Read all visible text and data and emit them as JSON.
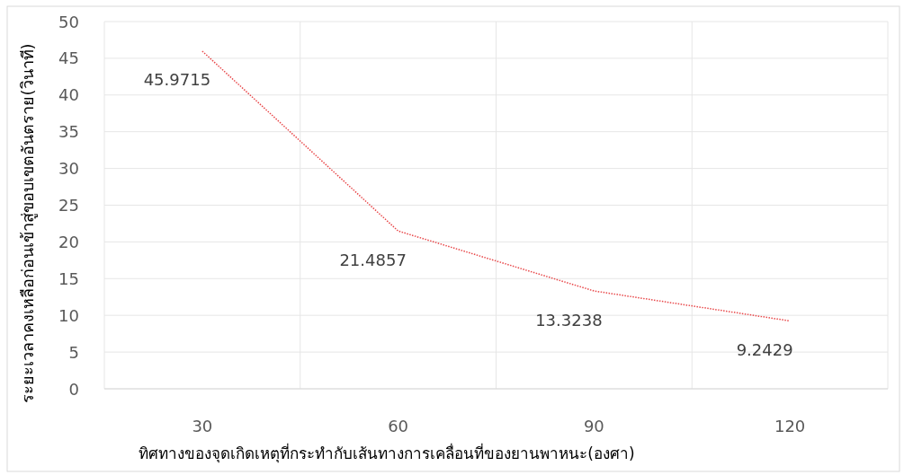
{
  "chart_data": {
    "type": "line",
    "categories": [
      "30",
      "60",
      "90",
      "120"
    ],
    "series": [
      {
        "color": "#e8484a",
        "values": [
          45.9715,
          21.4857,
          13.3238,
          9.2429
        ]
      }
    ],
    "xlabel": "ทิศทางของจุดเกิดเหตุที่กระทำกับเส้นทางการเคลื่อนที่ของยานพาหนะ(องศา)",
    "ylabel": "ระยะเวลาคงเหลือก่อนเข้าสู่ขอบเขตอันตราย(วินาที)",
    "ylim": [
      0,
      50
    ],
    "yticks": [
      0,
      5,
      10,
      15,
      20,
      25,
      30,
      35,
      40,
      45,
      50
    ],
    "grid": true,
    "data_labels": true,
    "line_style": "dotted"
  }
}
